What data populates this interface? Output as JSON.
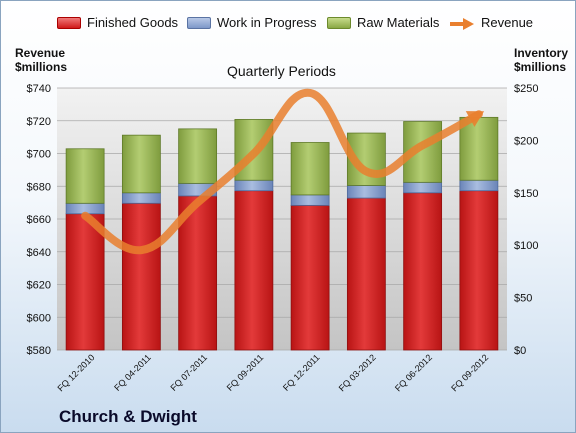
{
  "legend": {
    "finished_goods": "Finished Goods",
    "wip": "Work in Progress",
    "raw_materials": "Raw Materials",
    "revenue": "Revenue"
  },
  "left_axis_title": [
    "Revenue",
    "$millions"
  ],
  "right_axis_title": [
    "Inventory",
    "$millions"
  ],
  "subtitle": "Quarterly Periods",
  "company": "Church & Dwight",
  "colors": {
    "finished_goods": "#d42a2a",
    "wip": "#8aa2cf",
    "raw_materials": "#9bbb59",
    "revenue": "#e97f2e"
  },
  "chart_data": {
    "type": "bar",
    "stacked": true,
    "categories": [
      "FQ 12-2010",
      "FQ 04-2011",
      "FQ 07-2011",
      "FQ 09-2011",
      "FQ 12-2011",
      "FQ 03-2012",
      "FQ 06-2012",
      "FQ 09-2012"
    ],
    "series": [
      {
        "name": "Finished Goods",
        "axis": "right",
        "values": [
          130,
          140,
          147,
          152,
          138,
          145,
          150,
          152
        ]
      },
      {
        "name": "Work in Progress",
        "axis": "right",
        "values": [
          10,
          10,
          12,
          10,
          10,
          12,
          10,
          10
        ]
      },
      {
        "name": "Raw Materials",
        "axis": "right",
        "values": [
          52,
          55,
          52,
          58,
          50,
          50,
          58,
          60
        ]
      },
      {
        "name": "Revenue",
        "type": "line",
        "axis": "left",
        "values": [
          662,
          641,
          670,
          700,
          737,
          689,
          705,
          724
        ]
      }
    ],
    "left_axis": {
      "min": 580,
      "max": 740,
      "step": 20,
      "prefix": "$"
    },
    "right_axis": {
      "min": 0,
      "max": 250,
      "step": 50,
      "prefix": "$"
    }
  }
}
